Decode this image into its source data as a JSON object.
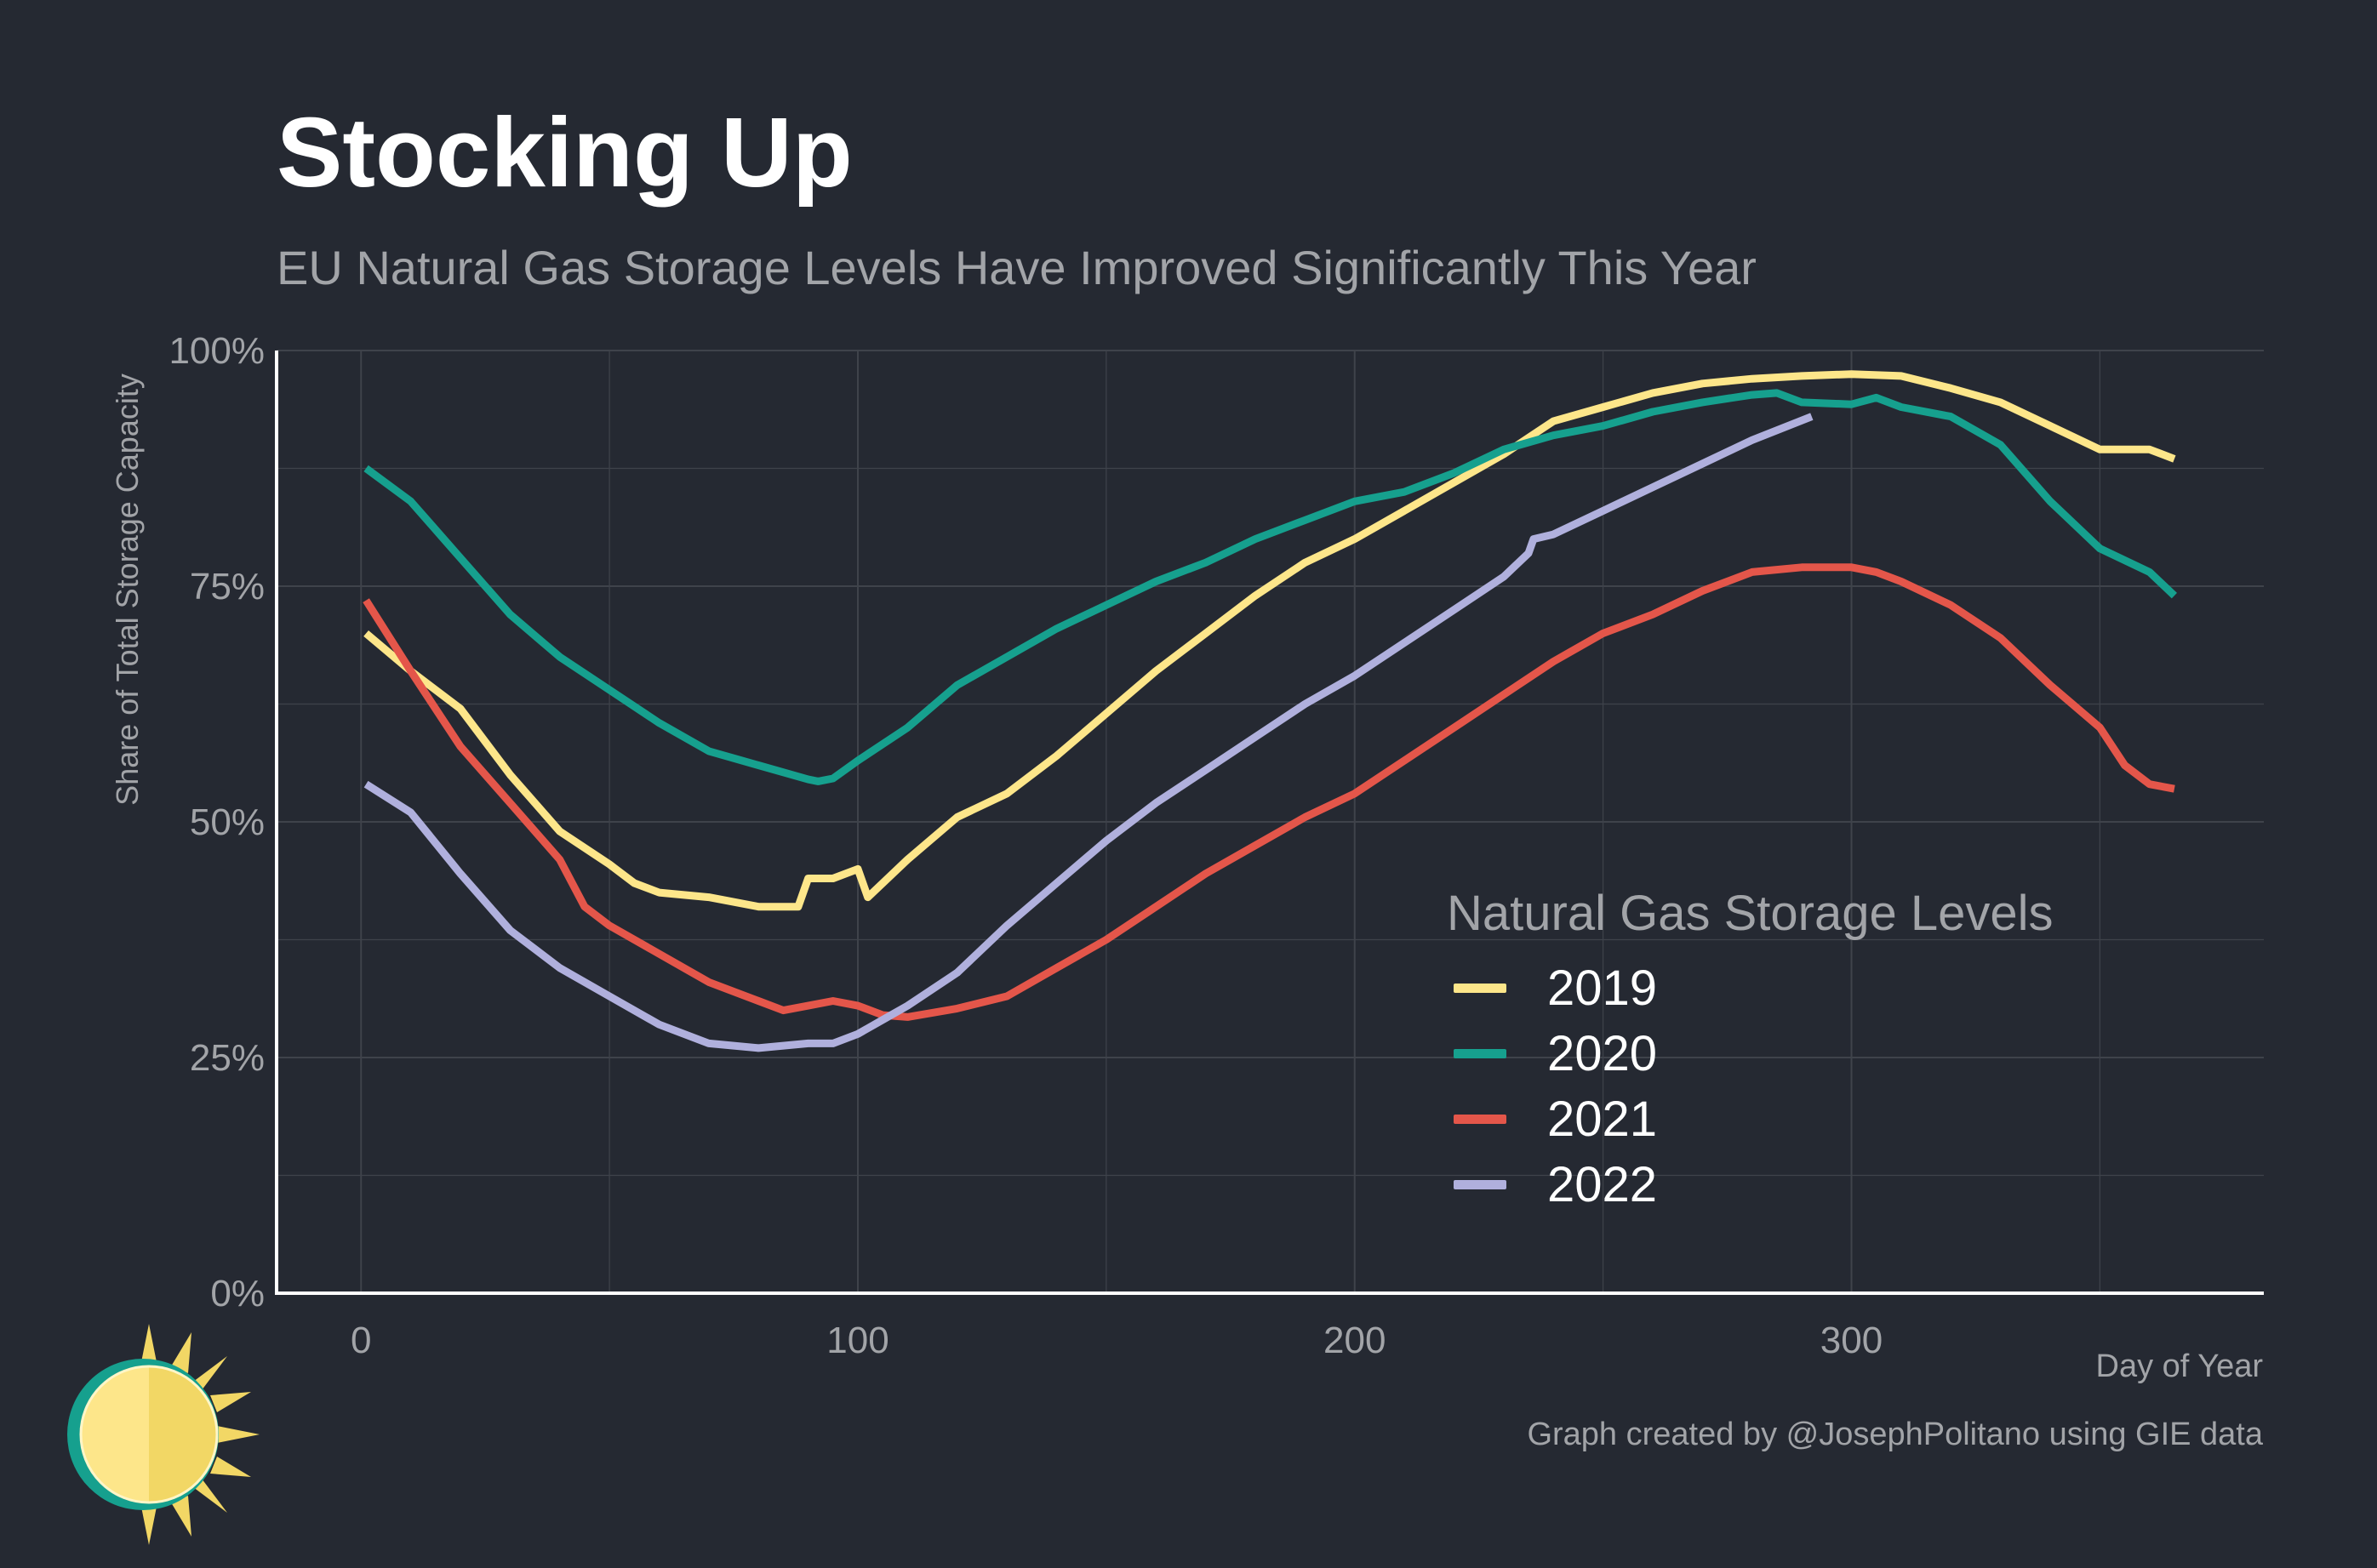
{
  "title": "Stocking Up",
  "subtitle": "EU Natural Gas Storage Levels Have Improved Significantly This Year",
  "caption": "Graph created by @JosephPolitano using GIE data",
  "colors": {
    "background": "#252932",
    "grid": "#3f434b",
    "axis": "#ffffff",
    "text_muted": "#a2a4a8"
  },
  "chart_data": {
    "type": "line",
    "title": "Stocking Up",
    "xlabel": "Day of Year",
    "ylabel": "Share of Total Storage Capacity",
    "xlim": [
      -17,
      383
    ],
    "ylim": [
      0,
      100
    ],
    "x_ticks": [
      0,
      100,
      200,
      300
    ],
    "x_tick_labels": [
      "0",
      "100",
      "200",
      "300"
    ],
    "y_ticks": [
      0,
      25,
      50,
      75,
      100
    ],
    "y_tick_labels": [
      "0%",
      "25%",
      "50%",
      "75%",
      "100%"
    ],
    "grid": true,
    "legend": {
      "title": "Natural Gas Storage Levels",
      "position": "bottom-right"
    },
    "series": [
      {
        "name": "2019",
        "color": "#fde68a",
        "x": [
          1,
          10,
          20,
          30,
          40,
          50,
          55,
          60,
          70,
          80,
          88,
          90,
          95,
          100,
          102,
          104,
          110,
          120,
          130,
          140,
          150,
          160,
          170,
          180,
          190,
          200,
          210,
          220,
          230,
          240,
          250,
          260,
          270,
          280,
          290,
          300,
          310,
          320,
          330,
          340,
          350,
          360,
          365
        ],
        "y": [
          70,
          66,
          62,
          55,
          49,
          45.5,
          43.5,
          42.5,
          42,
          41,
          41,
          44,
          44,
          45,
          42,
          43,
          46,
          50.5,
          53,
          57,
          61.5,
          66,
          70,
          74,
          77.5,
          80,
          83,
          86,
          89,
          92.5,
          94,
          95.5,
          96.5,
          97,
          97.3,
          97.5,
          97.3,
          96,
          94.5,
          92,
          89.5,
          89.5,
          88.5
        ]
      },
      {
        "name": "2020",
        "color": "#16a08e",
        "x": [
          1,
          10,
          20,
          30,
          40,
          50,
          60,
          70,
          80,
          90,
          92,
          95,
          100,
          110,
          120,
          130,
          140,
          150,
          160,
          170,
          180,
          190,
          200,
          210,
          220,
          230,
          240,
          250,
          260,
          270,
          280,
          285,
          290,
          300,
          305,
          310,
          320,
          330,
          340,
          350,
          360,
          365
        ],
        "y": [
          87.5,
          84,
          78,
          72,
          67.5,
          64,
          60.5,
          57.5,
          56,
          54.5,
          54.3,
          54.6,
          56.5,
          60,
          64.5,
          67.5,
          70.5,
          73,
          75.5,
          77.5,
          80,
          82,
          84,
          85,
          87,
          89.5,
          91,
          92,
          93.5,
          94.5,
          95.3,
          95.5,
          94.5,
          94.3,
          95,
          94,
          93,
          90,
          84,
          79,
          76.5,
          74
        ]
      },
      {
        "name": "2021",
        "color": "#e4564a",
        "x": [
          1,
          10,
          20,
          30,
          40,
          45,
          50,
          60,
          70,
          80,
          85,
          90,
          95,
          100,
          105,
          110,
          120,
          130,
          140,
          150,
          160,
          170,
          180,
          190,
          200,
          210,
          220,
          230,
          240,
          250,
          260,
          270,
          280,
          290,
          300,
          305,
          310,
          320,
          330,
          340,
          350,
          355,
          360,
          365
        ],
        "y": [
          73.5,
          66,
          58,
          52,
          46,
          41,
          39,
          36,
          33,
          31,
          30,
          30.5,
          31,
          30.5,
          29.5,
          29.3,
          30.2,
          31.5,
          34.5,
          37.5,
          41,
          44.5,
          47.5,
          50.5,
          53,
          56.5,
          60,
          63.5,
          67,
          70,
          72,
          74.5,
          76.5,
          77,
          77,
          76.5,
          75.5,
          73,
          69.5,
          64.5,
          60,
          56,
          54,
          53.5
        ]
      },
      {
        "name": "2022",
        "color": "#b0b0dd",
        "x": [
          1,
          10,
          20,
          30,
          40,
          50,
          60,
          70,
          80,
          90,
          95,
          100,
          105,
          110,
          120,
          130,
          140,
          150,
          160,
          170,
          180,
          190,
          200,
          210,
          220,
          230,
          235,
          236,
          240,
          250,
          260,
          270,
          280,
          292
        ],
        "y": [
          54,
          51,
          44.5,
          38.5,
          34.5,
          31.5,
          28.5,
          26.5,
          26,
          26.5,
          26.5,
          27.5,
          29,
          30.5,
          34,
          39,
          43.5,
          48,
          52,
          55.5,
          59,
          62.5,
          65.5,
          69,
          72.5,
          76,
          78.5,
          80,
          80.5,
          83,
          85.5,
          88,
          90.5,
          93
        ]
      }
    ]
  }
}
